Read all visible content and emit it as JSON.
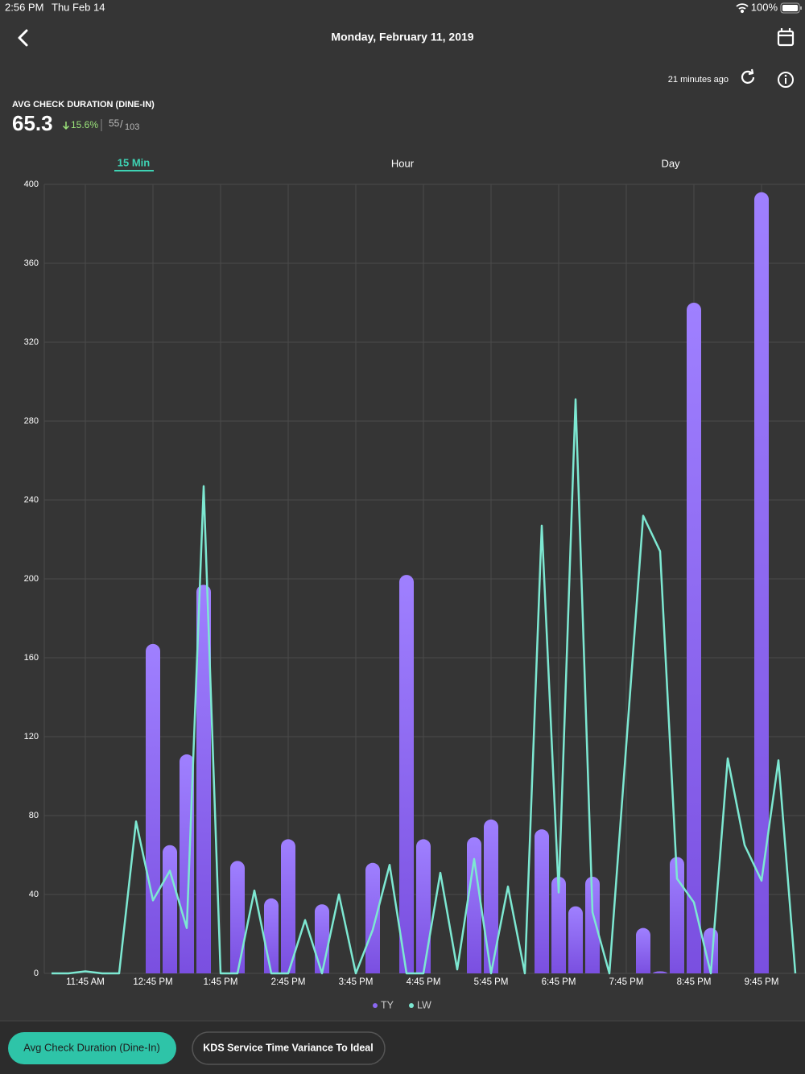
{
  "status_bar": {
    "time": "2:56 PM",
    "date": "Thu Feb 14",
    "battery": "100%"
  },
  "header": {
    "title": "Monday, February 11, 2019",
    "updated": "21 minutes ago"
  },
  "metric": {
    "title": "AVG CHECK DURATION (DINE-IN)",
    "value": "65.3",
    "change": "15.6%",
    "count": "55",
    "separator": "/",
    "total": "103"
  },
  "tabs": [
    "15 Min",
    "Hour",
    "Day"
  ],
  "chart_data": {
    "type": "bar",
    "categories": [
      null,
      null,
      "11:45 AM",
      null,
      null,
      null,
      "12:45 PM",
      null,
      null,
      null,
      "1:45 PM",
      null,
      null,
      null,
      "2:45 PM",
      null,
      null,
      null,
      "3:45 PM",
      null,
      null,
      null,
      "4:45 PM",
      null,
      null,
      null,
      "5:45 PM",
      null,
      null,
      null,
      "6:45 PM",
      null,
      null,
      null,
      "7:45 PM",
      null,
      null,
      null,
      "8:45 PM",
      null,
      null,
      null,
      "9:45 PM",
      null,
      null
    ],
    "series": [
      {
        "name": "TY",
        "type": "bar",
        "color": "#8a68f2",
        "values": [
          null,
          null,
          null,
          null,
          null,
          null,
          167,
          65,
          111,
          197,
          null,
          57,
          null,
          38,
          68,
          null,
          35,
          null,
          null,
          56,
          null,
          202,
          68,
          null,
          null,
          69,
          78,
          null,
          null,
          73,
          49,
          34,
          49,
          null,
          null,
          23,
          1,
          59,
          340,
          23,
          null,
          null,
          396,
          null,
          null
        ]
      },
      {
        "name": "LW",
        "type": "line",
        "color": "#7de8d2",
        "values": [
          0,
          0,
          1,
          0,
          0,
          77,
          37,
          52,
          23,
          247,
          0,
          0,
          42,
          0,
          0,
          27,
          0,
          40,
          0,
          22,
          55,
          0,
          0,
          51,
          2,
          58,
          0,
          44,
          0,
          227,
          41,
          291,
          31,
          0,
          116,
          232,
          214,
          48,
          36,
          0,
          109,
          65,
          47,
          108,
          0
        ]
      }
    ],
    "ylim": [
      0,
      400
    ],
    "yticks": [
      0,
      40,
      80,
      120,
      160,
      200,
      240,
      280,
      320,
      360,
      400
    ],
    "grid": true
  },
  "buttons": [
    "Avg Check Duration (Dine-In)",
    "KDS Service Time Variance To Ideal"
  ]
}
